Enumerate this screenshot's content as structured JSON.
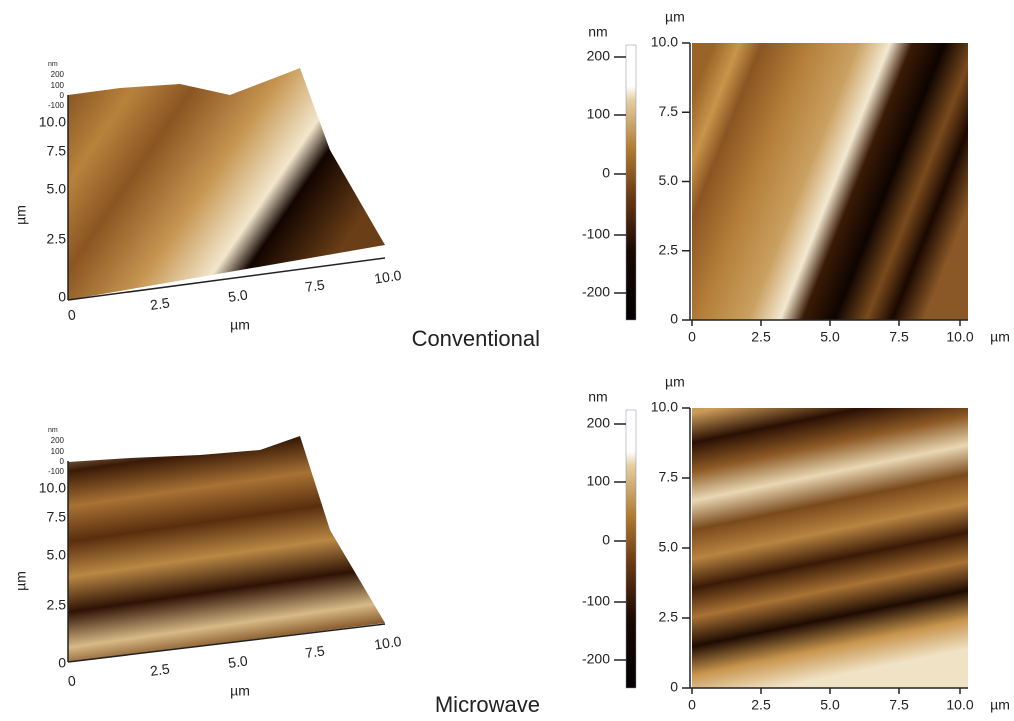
{
  "rows": [
    {
      "label": "Conventional",
      "surface_3d": {
        "z_unit": "nm",
        "z_ticks": [
          "200",
          "100",
          "0",
          "-100"
        ],
        "y_label": "µm",
        "y_ticks": [
          "0",
          "2.5",
          "5.0",
          "7.5",
          "10.0"
        ],
        "x_ticks": [
          "0",
          "2.5",
          "5.0",
          "7.5",
          "10.0"
        ],
        "x_label": "µm"
      },
      "height_map": {
        "scale_unit": "nm",
        "scale_ticks": [
          "200",
          "100",
          "0",
          "-100",
          "-200"
        ],
        "y_unit": "µm",
        "y_ticks": [
          "0",
          "2.5",
          "5.0",
          "7.5",
          "10.0"
        ],
        "x_ticks": [
          "0",
          "2.5",
          "5.0",
          "7.5",
          "10.0"
        ],
        "x_unit": "µm"
      }
    },
    {
      "label": "Microwave",
      "surface_3d": {
        "z_unit": "nm",
        "z_ticks": [
          "200",
          "100",
          "0",
          "-100"
        ],
        "y_label": "µm",
        "y_ticks": [
          "0",
          "2.5",
          "5.0",
          "7.5",
          "10.0"
        ],
        "x_ticks": [
          "0",
          "2.5",
          "5.0",
          "7.5",
          "10.0"
        ],
        "x_label": "µm"
      },
      "height_map": {
        "scale_unit": "nm",
        "scale_ticks": [
          "200",
          "100",
          "0",
          "-100",
          "-200"
        ],
        "y_unit": "µm",
        "y_ticks": [
          "0",
          "2.5",
          "5.0",
          "7.5",
          "10.0"
        ],
        "x_ticks": [
          "0",
          "2.5",
          "5.0",
          "7.5",
          "10.0"
        ],
        "x_unit": "µm"
      }
    }
  ]
}
